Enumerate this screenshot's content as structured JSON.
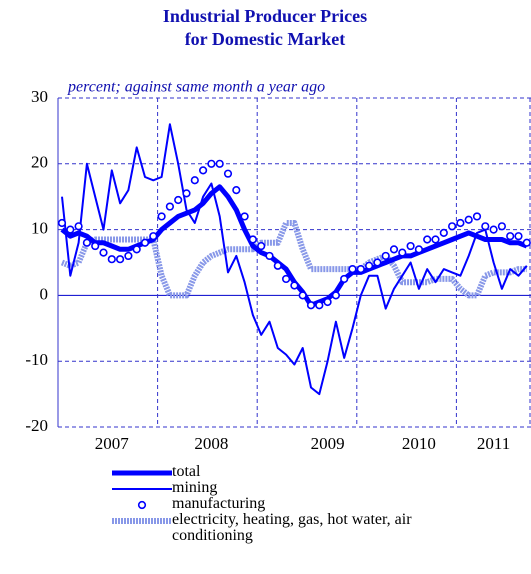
{
  "chart_data": {
    "type": "line",
    "title_lines": [
      "Industrial Producer Prices",
      "for Domestic Market"
    ],
    "subtitle": "percent; against same month a year ago",
    "categories": [
      null,
      null,
      null,
      null,
      null,
      null,
      "2007",
      null,
      null,
      null,
      null,
      null,
      null,
      null,
      null,
      null,
      null,
      null,
      "2008",
      null,
      null,
      null,
      null,
      null,
      null,
      null,
      null,
      null,
      null,
      null,
      null,
      null,
      "2009",
      null,
      null,
      null,
      null,
      null,
      null,
      null,
      null,
      null,
      null,
      "2010",
      null,
      null,
      null,
      null,
      null,
      null,
      null,
      null,
      "2011",
      null,
      null,
      null,
      null
    ],
    "ylim": [
      -20,
      30
    ],
    "yticks": [
      -20,
      -10,
      0,
      10,
      20,
      30
    ],
    "grid": true,
    "series": [
      {
        "name": "total",
        "color": "#0000ff",
        "style": "thick",
        "values": [
          10,
          9,
          9.5,
          9,
          8,
          8,
          7.5,
          7,
          7,
          7.5,
          8,
          8.5,
          10,
          11,
          12,
          12.5,
          13,
          14,
          15.5,
          16.5,
          15,
          13,
          10,
          7.5,
          6.5,
          6,
          5,
          4,
          2,
          0.5,
          -1.5,
          -1,
          -0.5,
          0.5,
          2.5,
          3.5,
          3.5,
          4,
          4.5,
          5,
          5.5,
          6,
          6,
          6.5,
          7,
          7.5,
          8,
          8.5,
          9,
          9.5,
          9,
          8.5,
          8.5,
          8.5,
          8,
          8,
          7.5
        ]
      },
      {
        "name": "mining",
        "color": "#0000ff",
        "style": "thin",
        "values": [
          15,
          3,
          8,
          20,
          15,
          10,
          19,
          14,
          16,
          22.5,
          18,
          17.5,
          18,
          26,
          20,
          13,
          11,
          15,
          17,
          12,
          3.5,
          6,
          2,
          -3,
          -6,
          -4,
          -8,
          -9,
          -10.5,
          -8,
          -14,
          -15,
          -10,
          -4,
          -9.5,
          -5,
          0,
          3,
          3,
          -2,
          1,
          3,
          5,
          1,
          4,
          2,
          4,
          3.5,
          3,
          6,
          9.5,
          10,
          5,
          1,
          4,
          3,
          4.5
        ]
      },
      {
        "name": "manufacturing",
        "color": "#0000ff",
        "style": "circles",
        "values": [
          11,
          10,
          10.5,
          8,
          7.5,
          6.5,
          5.5,
          5.5,
          6,
          7,
          8,
          9,
          12,
          13.5,
          14.5,
          15.5,
          17.5,
          19,
          20,
          20,
          18.5,
          16,
          12,
          8.5,
          7.5,
          6,
          4.5,
          2.5,
          1.5,
          0,
          -1.5,
          -1.5,
          -1,
          0,
          2.5,
          4,
          4,
          4.5,
          5,
          6,
          7,
          6.5,
          7.5,
          7,
          8.5,
          8.5,
          9.5,
          10.5,
          11,
          11.5,
          12,
          10.5,
          10,
          10.5,
          9,
          9,
          8
        ]
      },
      {
        "name": "electricity, heating, gas, hot water, air conditioning",
        "color": "#8898e8",
        "style": "patterned",
        "values": [
          5,
          4.5,
          5,
          8,
          8.5,
          8.5,
          8.5,
          8.5,
          8.5,
          8.5,
          8.5,
          8.5,
          3,
          0,
          0,
          0,
          3,
          5,
          6,
          6.5,
          7,
          7,
          7,
          7,
          8,
          8,
          8,
          11,
          11,
          7,
          4,
          4,
          4,
          4,
          4,
          4,
          4,
          5,
          5.5,
          6,
          4.5,
          2,
          2,
          2,
          2,
          2.5,
          2.5,
          2.5,
          1,
          0,
          0,
          3,
          3.5,
          3.5,
          3.5,
          4,
          4
        ]
      }
    ]
  }
}
